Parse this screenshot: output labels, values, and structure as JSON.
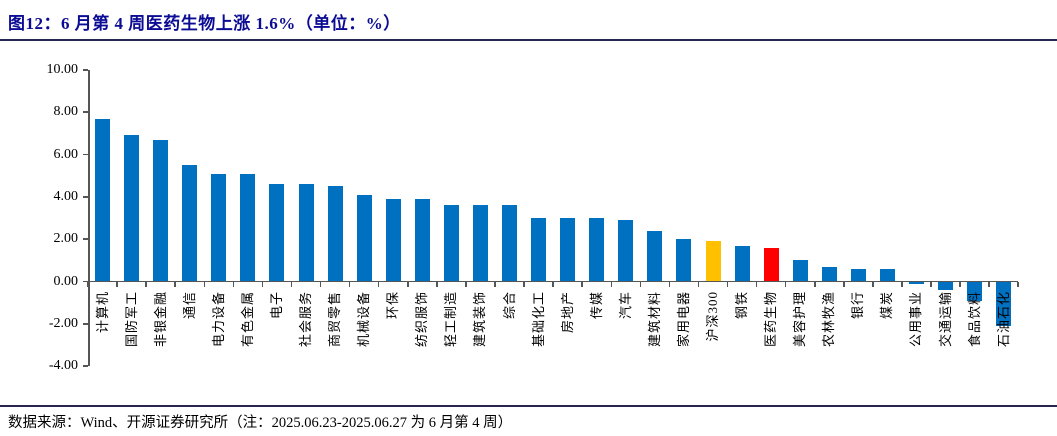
{
  "header": {
    "title": "图12：6 月第 4 周医药生物上涨 1.6%（单位：%）"
  },
  "footer": {
    "source": "数据来源：Wind、开源证券研究所（注：2025.06.23-2025.06.27 为 6 月第 4 周）"
  },
  "colors": {
    "title_text": "#0b0b94",
    "rule": "#26264f",
    "axis": "#555555",
    "bar_default": "#0070C0",
    "bar_benchmark": "#FFC000",
    "bar_pharma": "#FF0000"
  },
  "chart_data": {
    "type": "bar",
    "title": "6 月第 4 周医药生物上涨 1.6%（单位：%）",
    "unit": "%",
    "xlabel": "",
    "ylabel": "",
    "ylim": [
      -4,
      10
    ],
    "yticks": [
      10,
      8,
      6,
      4,
      2,
      0,
      -2,
      -4
    ],
    "ytick_labels": [
      "10.00",
      "8.00",
      "6.00",
      "4.00",
      "2.00",
      "0.00",
      "-2.00",
      "-4.00"
    ],
    "grid": false,
    "legend": "none",
    "categories": [
      "计算机",
      "国防军工",
      "非银金融",
      "通信",
      "电力设备",
      "有色金属",
      "电子",
      "社会服务",
      "商贸零售",
      "机械设备",
      "环保",
      "纺织服饰",
      "轻工制造",
      "建筑装饰",
      "综合",
      "基础化工",
      "房地产",
      "传媒",
      "汽车",
      "建筑材料",
      "家用电器",
      "沪深300",
      "钢铁",
      "医药生物",
      "美容护理",
      "农林牧渔",
      "银行",
      "煤炭",
      "公用事业",
      "交通运输",
      "食品饮料",
      "石油石化"
    ],
    "values": [
      7.7,
      6.9,
      6.7,
      5.5,
      5.1,
      5.1,
      4.6,
      4.6,
      4.5,
      4.1,
      3.9,
      3.9,
      3.6,
      3.6,
      3.6,
      3.0,
      3.0,
      3.0,
      2.9,
      2.4,
      2.0,
      1.9,
      1.7,
      1.6,
      1.0,
      0.7,
      0.6,
      0.6,
      -0.1,
      -0.4,
      -0.9,
      -2.1
    ],
    "bar_colors": {
      "default": "#0070C0",
      "overrides": {
        "沪深300": "#FFC000",
        "医药生物": "#FF0000"
      }
    }
  }
}
